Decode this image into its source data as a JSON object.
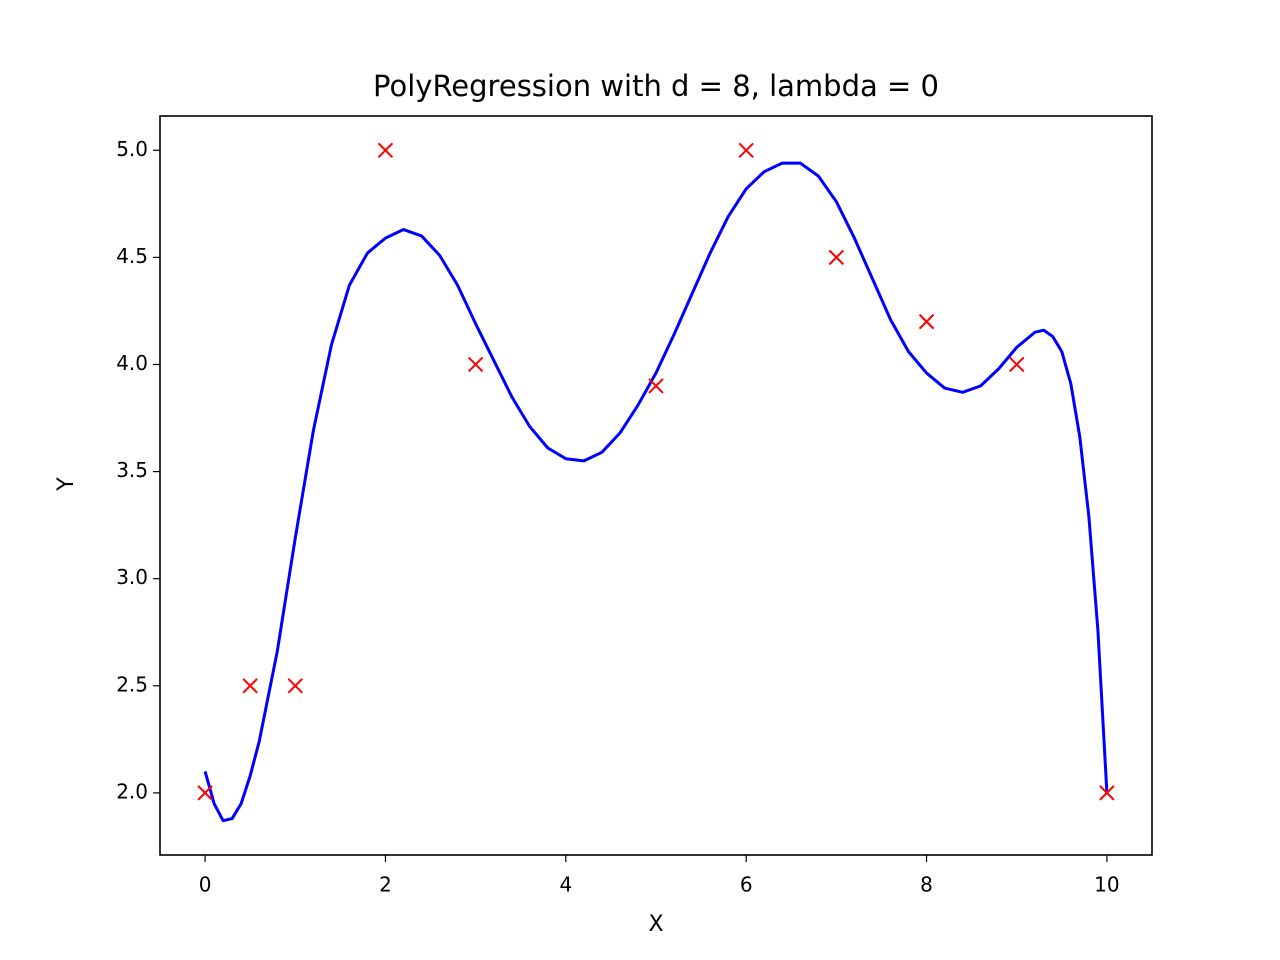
{
  "chart_data": {
    "type": "line",
    "title": "PolyRegression with d = 8, lambda = 0",
    "x_label": "X",
    "y_label": "Y",
    "xlim": [
      -0.5,
      10.5
    ],
    "ylim": [
      1.71,
      5.16
    ],
    "xticks": [
      0,
      2,
      4,
      6,
      8,
      10
    ],
    "yticks": [
      {
        "value": 2,
        "label": "2.0"
      },
      2.5,
      {
        "value": 3,
        "label": "3.0"
      },
      3.5,
      {
        "value": 4,
        "label": "4.0"
      },
      4.5,
      {
        "value": 5,
        "label": "5.0"
      }
    ],
    "grid": false,
    "series": [
      {
        "type": "scatter",
        "color": "#ff0000",
        "x": [
          0,
          0.5,
          1,
          2,
          3,
          5,
          6,
          7,
          8,
          9,
          10
        ],
        "values": [
          2,
          2.5,
          2.5,
          5,
          4,
          3.9,
          5,
          4.5,
          4.2,
          4,
          2
        ]
      },
      {
        "type": "line",
        "color": "#0000ff",
        "x": [
          0,
          0.1,
          0.2,
          0.3,
          0.4,
          0.5,
          0.6,
          0.8,
          1.0,
          1.2,
          1.4,
          1.6,
          1.8,
          2.0,
          2.2,
          2.4,
          2.6,
          2.8,
          3.0,
          3.2,
          3.4,
          3.6,
          3.8,
          4.0,
          4.2,
          4.4,
          4.6,
          4.8,
          5.0,
          5.2,
          5.4,
          5.6,
          5.8,
          6.0,
          6.2,
          6.4,
          6.6,
          6.8,
          7.0,
          7.2,
          7.4,
          7.6,
          7.8,
          8.0,
          8.2,
          8.4,
          8.6,
          8.8,
          9.0,
          9.2,
          9.3,
          9.4,
          9.5,
          9.6,
          9.7,
          9.8,
          9.9,
          10
        ],
        "values": [
          2.1,
          1.95,
          1.87,
          1.88,
          1.95,
          2.08,
          2.24,
          2.66,
          3.19,
          3.69,
          4.09,
          4.37,
          4.52,
          4.59,
          4.63,
          4.6,
          4.51,
          4.37,
          4.19,
          4.02,
          3.85,
          3.71,
          3.61,
          3.56,
          3.55,
          3.59,
          3.68,
          3.81,
          3.96,
          4.14,
          4.33,
          4.52,
          4.69,
          4.82,
          4.9,
          4.94,
          4.94,
          4.88,
          4.76,
          4.59,
          4.4,
          4.21,
          4.06,
          3.96,
          3.89,
          3.87,
          3.9,
          3.98,
          4.08,
          4.15,
          4.16,
          4.13,
          4.06,
          3.91,
          3.66,
          3.29,
          2.76,
          2
        ]
      }
    ]
  }
}
